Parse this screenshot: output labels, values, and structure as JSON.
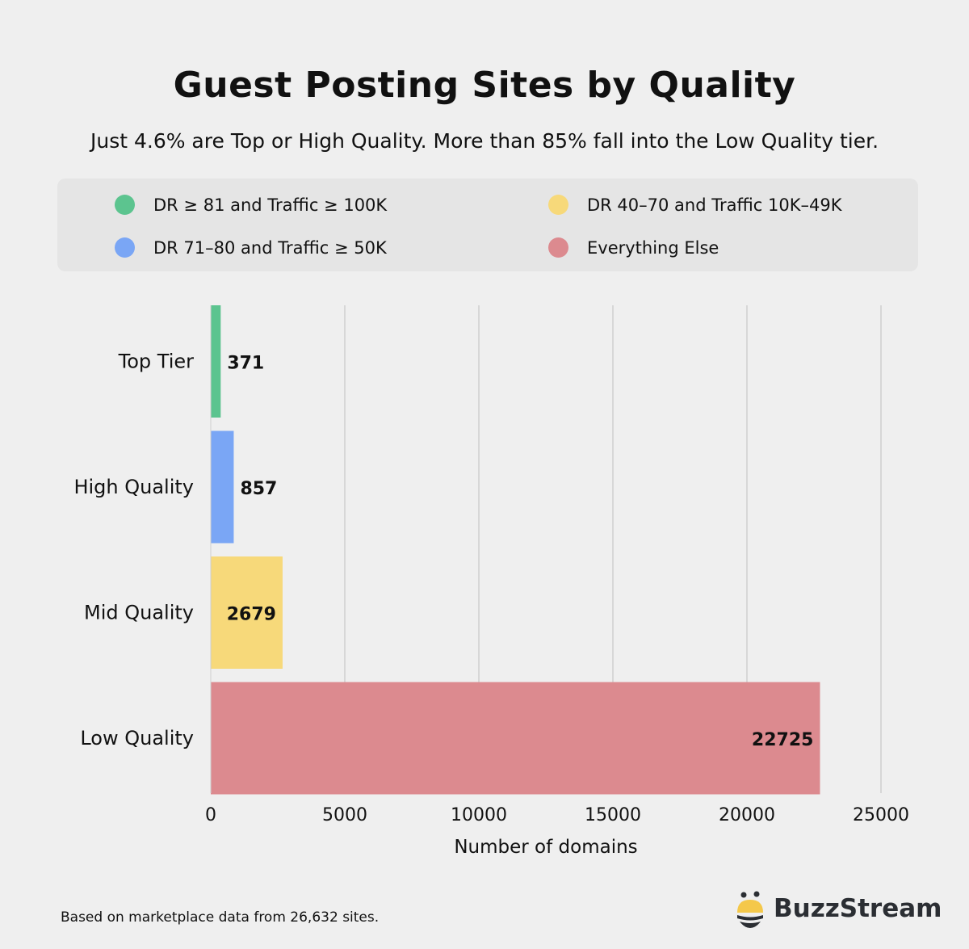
{
  "chart_data": {
    "type": "bar",
    "orientation": "horizontal",
    "title": "Guest Posting Sites by Quality",
    "subtitle": "Just 4.6% are Top or High Quality. More than 85% fall into the Low Quality tier.",
    "categories": [
      "Top Tier",
      "High Quality",
      "Mid Quality",
      "Low Quality"
    ],
    "values": [
      371,
      857,
      2679,
      22725
    ],
    "colors": [
      "#5cc48f",
      "#7aa6f5",
      "#f7d97a",
      "#dc8a8f"
    ],
    "xlabel": "Number of domains",
    "ylabel": "",
    "xlim": [
      0,
      25000
    ],
    "xticks": [
      0,
      5000,
      10000,
      15000,
      20000,
      25000
    ],
    "grid": "vertical",
    "legend_position": "top",
    "legend": [
      {
        "label": "DR ≥ 81 and Traffic ≥ 100K",
        "color": "#5cc48f"
      },
      {
        "label": "DR 71–80 and Traffic ≥ 50K",
        "color": "#7aa6f5"
      },
      {
        "label": "DR 40–70 and Traffic 10K–49K",
        "color": "#f7d97a"
      },
      {
        "label": "Everything Else",
        "color": "#dc8a8f"
      }
    ]
  },
  "footnote": "Based on marketplace data from 26,632 sites.",
  "brand": {
    "name": "BuzzStream"
  }
}
